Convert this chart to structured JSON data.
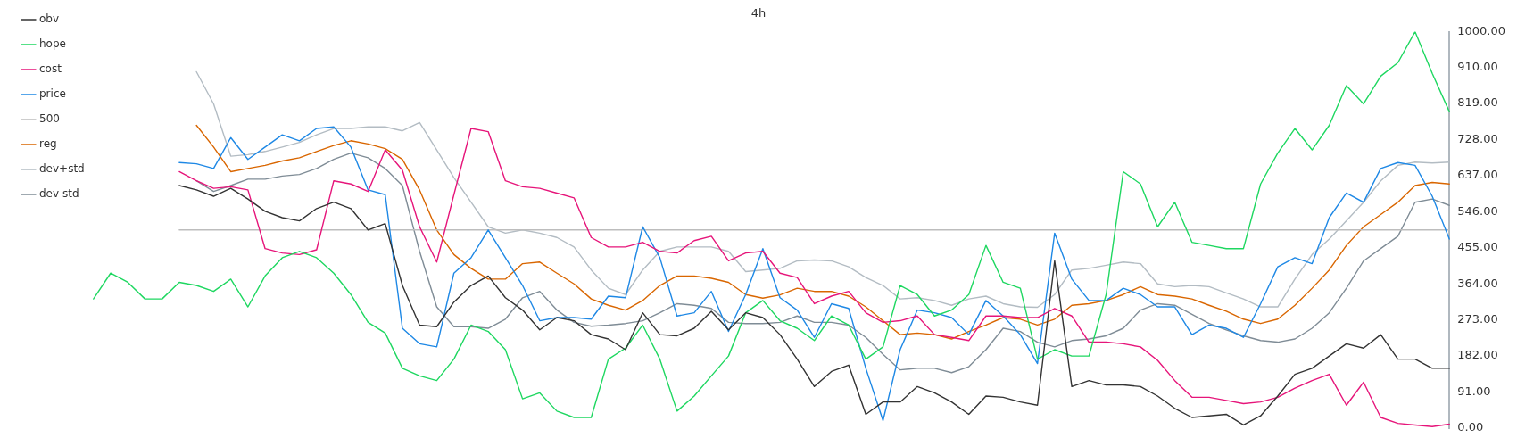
{
  "chart_data": {
    "type": "line",
    "title": "4h",
    "categories": [
      null,
      null,
      null,
      null,
      null,
      null,
      null,
      null,
      null,
      null,
      null,
      null,
      null,
      null,
      null,
      null,
      null,
      null,
      null,
      null,
      null,
      null,
      null,
      null,
      null,
      null,
      null,
      null,
      null,
      null,
      null,
      null,
      null,
      null,
      null,
      null,
      null,
      null,
      null,
      null,
      null,
      null,
      null,
      null,
      null,
      null,
      null,
      null,
      null,
      null,
      null,
      null,
      null,
      null,
      null,
      null,
      null,
      null,
      null,
      null,
      null,
      null,
      null,
      null,
      null,
      null,
      null,
      null,
      null,
      null,
      null,
      null,
      null,
      null,
      null,
      null,
      null,
      null,
      null,
      null
    ],
    "ylim": [
      0,
      1000
    ],
    "yticks": [
      {
        "value": 0,
        "label": "0.00"
      },
      {
        "value": 91,
        "label": "91.00"
      },
      {
        "value": 182,
        "label": "182.00"
      },
      {
        "value": 273,
        "label": "273.00"
      },
      {
        "value": 364,
        "label": "364.00"
      },
      {
        "value": 455,
        "label": "455.00"
      },
      {
        "value": 546,
        "label": "546.00"
      },
      {
        "value": 637,
        "label": "637.00"
      },
      {
        "value": 728,
        "label": "728.00"
      },
      {
        "value": 819,
        "label": "819.00"
      },
      {
        "value": 910,
        "label": "910.00"
      },
      {
        "value": 1000,
        "label": "1000.00"
      }
    ],
    "tick_labels": "y",
    "grid": false,
    "legend": "top left",
    "marker": "none",
    "series": [
      {
        "name": "obv",
        "color": "#333333",
        "values": [
          null,
          null,
          null,
          null,
          null,
          612,
          601,
          585,
          605,
          578,
          547,
          531,
          523,
          554,
          570,
          554,
          500,
          516,
          360,
          260,
          256,
          318,
          360,
          384,
          329,
          298,
          248,
          279,
          271,
          236,
          225,
          198,
          291,
          236,
          233,
          252,
          295,
          248,
          291,
          279,
          236,
          174,
          105,
          143,
          159,
          35,
          66,
          66,
          105,
          89,
          66,
          35,
          81,
          78,
          66,
          58,
          422,
          105,
          120,
          109,
          109,
          105,
          81,
          50,
          27,
          31,
          35,
          8,
          31,
          81,
          136,
          151,
          182,
          213,
          202,
          236,
          174,
          174,
          151,
          151
        ]
      },
      {
        "name": "hope",
        "color": "#1ed760",
        "values": [
          326,
          391,
          368,
          326,
          326,
          368,
          360,
          345,
          376,
          306,
          384,
          430,
          446,
          430,
          391,
          337,
          267,
          240,
          151,
          132,
          120,
          174,
          260,
          244,
          198,
          74,
          89,
          43,
          27,
          27,
          174,
          202,
          260,
          174,
          43,
          81,
          132,
          182,
          291,
          322,
          271,
          252,
          221,
          283,
          260,
          174,
          205,
          360,
          337,
          283,
          298,
          337,
          461,
          368,
          353,
          174,
          198,
          182,
          182,
          337,
          647,
          616,
          508,
          570,
          469,
          461,
          453,
          453,
          616,
          694,
          756,
          702,
          764,
          864,
          818,
          888,
          922,
          1000,
          895,
          798
        ]
      },
      {
        "name": "cost",
        "color": "#e6157a",
        "values": [
          null,
          null,
          null,
          null,
          null,
          647,
          624,
          605,
          609,
          601,
          453,
          442,
          438,
          450,
          624,
          616,
          597,
          702,
          651,
          508,
          419,
          589,
          756,
          748,
          624,
          609,
          605,
          593,
          581,
          481,
          457,
          457,
          469,
          446,
          442,
          473,
          484,
          422,
          442,
          446,
          391,
          380,
          314,
          333,
          345,
          291,
          267,
          271,
          283,
          236,
          229,
          221,
          283,
          283,
          279,
          279,
          302,
          283,
          217,
          217,
          213,
          205,
          171,
          120,
          78,
          78,
          70,
          62,
          66,
          78,
          101,
          120,
          136,
          58,
          116,
          27,
          12,
          8,
          4,
          10
        ]
      },
      {
        "name": "price",
        "color": "#1e88e5",
        "values": [
          null,
          null,
          null,
          null,
          null,
          670,
          667,
          655,
          733,
          678,
          709,
          740,
          725,
          756,
          760,
          709,
          601,
          589,
          252,
          213,
          205,
          391,
          430,
          500,
          430,
          360,
          271,
          279,
          279,
          275,
          333,
          329,
          508,
          430,
          283,
          291,
          345,
          244,
          337,
          453,
          329,
          298,
          229,
          314,
          302,
          151,
          19,
          198,
          298,
          291,
          279,
          236,
          322,
          283,
          236,
          163,
          492,
          376,
          322,
          322,
          353,
          337,
          306,
          306,
          236,
          260,
          252,
          229,
          314,
          407,
          430,
          415,
          531,
          593,
          570,
          655,
          670,
          663,
          585,
          477
        ]
      },
      {
        "name": "500",
        "color": "#bdbdbd",
        "values": [
          null,
          null,
          null,
          null,
          null,
          500,
          500,
          500,
          500,
          500,
          500,
          500,
          500,
          500,
          500,
          500,
          500,
          500,
          500,
          500,
          500,
          500,
          500,
          500,
          500,
          500,
          500,
          500,
          500,
          500,
          500,
          500,
          500,
          500,
          500,
          500,
          500,
          500,
          500,
          500,
          500,
          500,
          500,
          500,
          500,
          500,
          500,
          500,
          500,
          500,
          500,
          500,
          500,
          500,
          500,
          500,
          500,
          500,
          500,
          500,
          500,
          500,
          500,
          500,
          500,
          500,
          500,
          500,
          500,
          500,
          500,
          500,
          500,
          500,
          500,
          500,
          500,
          500,
          500,
          500
        ]
      },
      {
        "name": "reg",
        "color": "#d96600",
        "values": [
          null,
          null,
          null,
          null,
          null,
          null,
          764,
          709,
          647,
          655,
          663,
          674,
          682,
          698,
          713,
          725,
          717,
          705,
          678,
          601,
          500,
          438,
          403,
          376,
          376,
          415,
          419,
          391,
          364,
          326,
          310,
          298,
          322,
          360,
          384,
          384,
          378,
          368,
          337,
          328,
          336,
          353,
          345,
          345,
          333,
          306,
          271,
          236,
          240,
          236,
          225,
          244,
          260,
          279,
          275,
          260,
          275,
          310,
          314,
          322,
          337,
          357,
          337,
          333,
          326,
          310,
          295,
          275,
          264,
          275,
          310,
          353,
          399,
          461,
          508,
          539,
          570,
          612,
          620,
          616
        ]
      },
      {
        "name": "dev+std",
        "color": "#b3bcc3",
        "values": [
          null,
          null,
          null,
          null,
          null,
          null,
          899,
          818,
          686,
          690,
          698,
          709,
          721,
          740,
          756,
          756,
          760,
          760,
          750,
          771,
          702,
          632,
          570,
          508,
          492,
          500,
          492,
          481,
          457,
          399,
          353,
          337,
          399,
          446,
          457,
          457,
          457,
          446,
          395,
          399,
          403,
          422,
          424,
          422,
          407,
          380,
          360,
          326,
          329,
          322,
          310,
          326,
          333,
          314,
          306,
          305,
          337,
          399,
          403,
          411,
          419,
          415,
          364,
          357,
          360,
          357,
          341,
          326,
          306,
          306,
          376,
          438,
          477,
          523,
          570,
          624,
          663,
          671,
          669,
          671
        ]
      },
      {
        "name": "dev-std",
        "color": "#7f8c96",
        "values": [
          null,
          null,
          null,
          null,
          null,
          null,
          624,
          597,
          612,
          628,
          628,
          636,
          640,
          655,
          678,
          694,
          682,
          655,
          612,
          446,
          306,
          256,
          256,
          252,
          275,
          329,
          345,
          298,
          267,
          257,
          260,
          264,
          271,
          291,
          314,
          310,
          302,
          267,
          264,
          264,
          267,
          283,
          267,
          267,
          260,
          229,
          186,
          147,
          151,
          151,
          140,
          155,
          198,
          252,
          244,
          217,
          205,
          221,
          225,
          233,
          252,
          298,
          314,
          310,
          287,
          264,
          248,
          233,
          221,
          217,
          225,
          252,
          291,
          353,
          422,
          453,
          484,
          570,
          578,
          562
        ]
      }
    ]
  }
}
